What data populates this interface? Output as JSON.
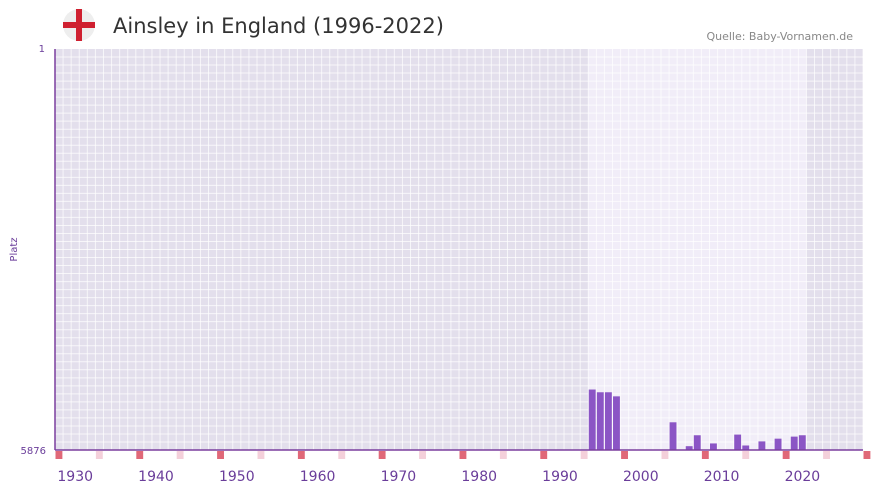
{
  "header": {
    "title": "Ainsley in England (1996-2022)",
    "source": "Quelle: Baby-Vornamen.de",
    "flag_icon": "england-flag-icon"
  },
  "colors": {
    "plot_bg": "#e3dfec",
    "plot_bg_highlight": "#f1edf8",
    "bar": "#8b55c5",
    "axis": "#7b3f9e",
    "marker_strong": "#e06878",
    "marker_light": "#f4d0da",
    "flag_red": "#cf2030",
    "flag_bg": "#eeeeee"
  },
  "chart_data": {
    "type": "bar",
    "title": "Ainsley in England (1996-2022)",
    "xlabel": "",
    "ylabel": "Platz",
    "y_inverted": true,
    "ylim": [
      1,
      5876
    ],
    "ytick_labels": [
      "1",
      "5876"
    ],
    "xlim": [
      1928,
      2028
    ],
    "xticks": [
      1930,
      1940,
      1950,
      1960,
      1970,
      1980,
      1990,
      2000,
      2010,
      2020
    ],
    "highlight_range": [
      1994,
      2020
    ],
    "x": [
      1994,
      1995,
      1996,
      1997,
      2004,
      2006,
      2007,
      2009,
      2012,
      2013,
      2015,
      2017,
      2019,
      2020
    ],
    "rank": [
      4990,
      5030,
      5030,
      5090,
      5470,
      5820,
      5660,
      5780,
      5650,
      5810,
      5750,
      5710,
      5680,
      5660
    ]
  }
}
